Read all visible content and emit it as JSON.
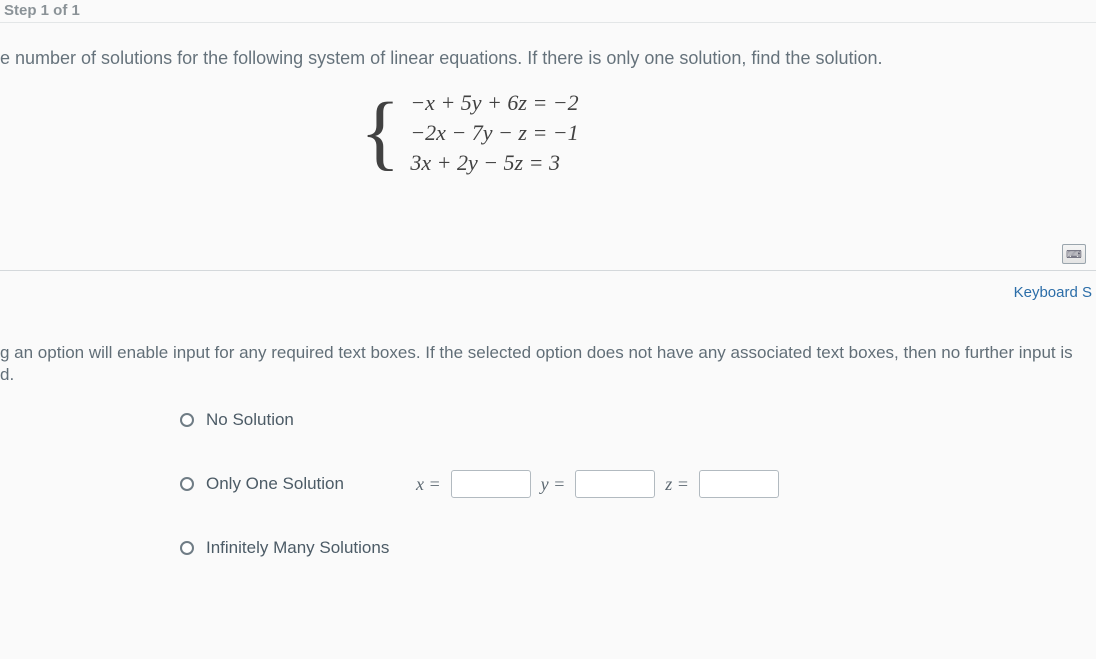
{
  "colors": {
    "background": "#fafafa",
    "text": "#4c5b66",
    "divider": "#d4d8db",
    "link": "#2b6da8",
    "equation_text": "#2e2e2e",
    "input_border": "#b2bac0",
    "radio_border": "#6f7c85"
  },
  "typography": {
    "body_font": "Arial, sans-serif",
    "math_font": "Times New Roman, Georgia, serif",
    "prompt_fontsize": 18,
    "option_fontsize": 17,
    "equation_fontsize": 22
  },
  "header": {
    "step_label": "Step 1 of 1"
  },
  "prompt": {
    "text": "e number of solutions for the following system of linear equations. If there is only one solution, find the solution."
  },
  "system": {
    "format": "brace_system",
    "equations": [
      "−x + 5y + 6z = −2",
      "−2x − 7y − z = −1",
      "3x + 2y − 5z = 3"
    ],
    "coefficients": [
      [
        -1,
        5,
        6,
        -2
      ],
      [
        -2,
        -7,
        -1,
        -1
      ],
      [
        3,
        2,
        -5,
        3
      ]
    ]
  },
  "keyboard": {
    "label": "Keyboard S"
  },
  "instruction": {
    "text_line1": "g an option will enable input for any required text boxes. If the selected option does not have any associated text boxes, then no further input is",
    "text_line2": "d."
  },
  "options": {
    "no_solution": {
      "label": "No Solution"
    },
    "one_solution": {
      "label": "Only One Solution",
      "vars": {
        "x_label": "x =",
        "y_label": "y =",
        "z_label": "z =",
        "x_value": "",
        "y_value": "",
        "z_value": ""
      }
    },
    "infinite": {
      "label": "Infinitely Many Solutions"
    }
  }
}
